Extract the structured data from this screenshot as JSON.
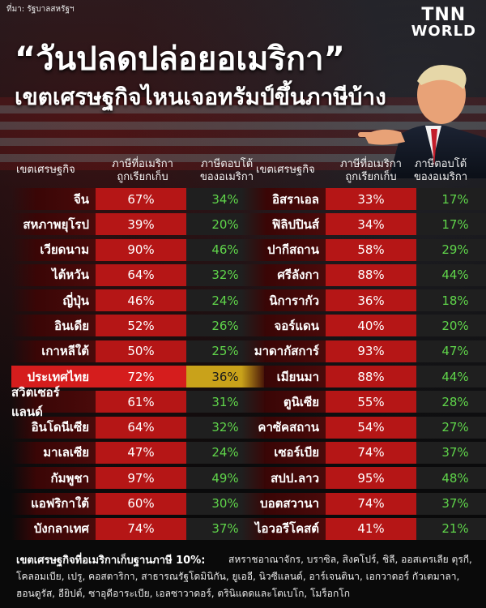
{
  "source": "ที่มา: รัฐบาลสหรัฐฯ",
  "brand": {
    "name": "TNN",
    "sub": "WORLD"
  },
  "title": {
    "line1": "“วันปลดปล่อยอเมริกา”",
    "line2": "เขตเศรษฐกิจไหนเจอทรัมป์ขึ้นภาษีบ้าง"
  },
  "headers": {
    "economy": "เขตเศรษฐกิจ",
    "us_tax": "ภาษีที่อเมริกา\nถูกเรียกเก็บ",
    "response": "ภาษีตอบโต้\nของอเมริกา"
  },
  "left_rows": [
    {
      "name": "จีน",
      "us": "67%",
      "resp": "34%"
    },
    {
      "name": "สหภาพยุโรป",
      "us": "39%",
      "resp": "20%"
    },
    {
      "name": "เวียดนาม",
      "us": "90%",
      "resp": "46%"
    },
    {
      "name": "ไต้หวัน",
      "us": "64%",
      "resp": "32%"
    },
    {
      "name": "ญี่ปุ่น",
      "us": "46%",
      "resp": "24%"
    },
    {
      "name": "อินเดีย",
      "us": "52%",
      "resp": "26%"
    },
    {
      "name": "เกาหลีใต้",
      "us": "50%",
      "resp": "25%"
    },
    {
      "name": "ประเทศไทย",
      "us": "72%",
      "resp": "36%",
      "highlight": true
    },
    {
      "name": "สวิตเซอร์แลนด์",
      "us": "61%",
      "resp": "31%"
    },
    {
      "name": "อินโดนีเซีย",
      "us": "64%",
      "resp": "32%"
    },
    {
      "name": "มาเลเซีย",
      "us": "47%",
      "resp": "24%"
    },
    {
      "name": "กัมพูชา",
      "us": "97%",
      "resp": "49%"
    },
    {
      "name": "แอฟริกาใต้",
      "us": "60%",
      "resp": "30%"
    },
    {
      "name": "บังกลาเทศ",
      "us": "74%",
      "resp": "37%"
    }
  ],
  "right_rows": [
    {
      "name": "อิสราเอล",
      "us": "33%",
      "resp": "17%"
    },
    {
      "name": "ฟิลิปปินส์",
      "us": "34%",
      "resp": "17%"
    },
    {
      "name": "ปากีสถาน",
      "us": "58%",
      "resp": "29%"
    },
    {
      "name": "ศรีลังกา",
      "us": "88%",
      "resp": "44%"
    },
    {
      "name": "นิการากัว",
      "us": "36%",
      "resp": "18%"
    },
    {
      "name": "จอร์แดน",
      "us": "40%",
      "resp": "20%"
    },
    {
      "name": "มาดากัสการ์",
      "us": "93%",
      "resp": "47%"
    },
    {
      "name": "เมียนมา",
      "us": "88%",
      "resp": "44%"
    },
    {
      "name": "ตูนิเซีย",
      "us": "55%",
      "resp": "28%"
    },
    {
      "name": "คาซัคสถาน",
      "us": "54%",
      "resp": "27%"
    },
    {
      "name": "เซอร์เบีย",
      "us": "74%",
      "resp": "37%"
    },
    {
      "name": "สปป.ลาว",
      "us": "95%",
      "resp": "48%"
    },
    {
      "name": "บอตสวานา",
      "us": "74%",
      "resp": "37%"
    },
    {
      "name": "ไอวอรีโคสต์",
      "us": "41%",
      "resp": "21%"
    }
  ],
  "footer": {
    "title": "เขตเศรษฐกิจที่อเมริกาเก็บฐานภาษี 10%:",
    "text": "สหราชอาณาจักร, บราซิล, สิงคโปร์, ชิลี, ออสเตรเลีย ตุรกี, โคลอมเบีย, เปรู, คอสตาริกา, สาธารณรัฐโดมินิกัน, ยูเออี, นิวซีแลนด์, อาร์เจนตินา, เอกวาดอร์ กัวเตมาลา, ฮอนดูรัส, อียิปต์, ซาอุดีอาระเบีย, เอลซาวาดอร์, ตรินิแดดและโตเบโก, โมร็อกโก"
  },
  "colors": {
    "us_cell": "#b51616",
    "resp_text": "#5fd44a",
    "highlight_resp": "#c9a21a"
  }
}
